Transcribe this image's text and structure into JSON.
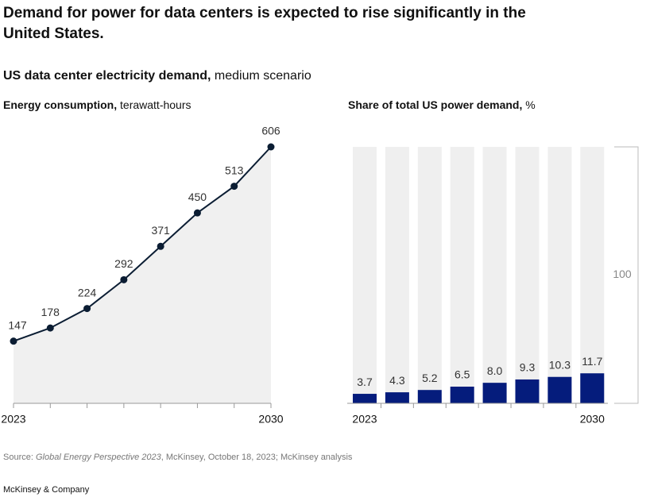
{
  "title": [
    "Demand for power for data centers is expected to rise significantly in the",
    "United States."
  ],
  "subtitle": {
    "bold": "US data center electricity demand,",
    "normal": "medium scenario"
  },
  "chart_data": [
    {
      "type": "line",
      "title": "Energy consumption,",
      "title_unit": "terawatt-hours",
      "categories": [
        "2023",
        null,
        null,
        null,
        null,
        null,
        null,
        "2030"
      ],
      "values": [
        147,
        178,
        224,
        292,
        371,
        450,
        513,
        606
      ],
      "color": "#0b1d33",
      "area_color": "#f0f0f0",
      "ylim": [
        0,
        606
      ]
    },
    {
      "type": "bar",
      "title": "Share of total US power demand,",
      "title_unit": "%",
      "categories": [
        "2023",
        null,
        null,
        null,
        null,
        null,
        null,
        "2030"
      ],
      "values": [
        3.7,
        4.3,
        5.2,
        6.5,
        8.0,
        9.3,
        10.3,
        11.7
      ],
      "value_labels": [
        "3.7",
        "4.3",
        "5.2",
        "6.5",
        "8.0",
        "9.3",
        "10.3",
        "11.7"
      ],
      "color": "#051c7c",
      "background_color": "#efefef",
      "ylim": [
        0,
        100
      ],
      "bracket_value": 100
    }
  ],
  "source": {
    "prefix": "Source:",
    "italic": "Global Energy Perspective 2023",
    "rest": ", McKinsey, October 18, 2023; McKinsey analysis"
  },
  "footer": "McKinsey & Company"
}
